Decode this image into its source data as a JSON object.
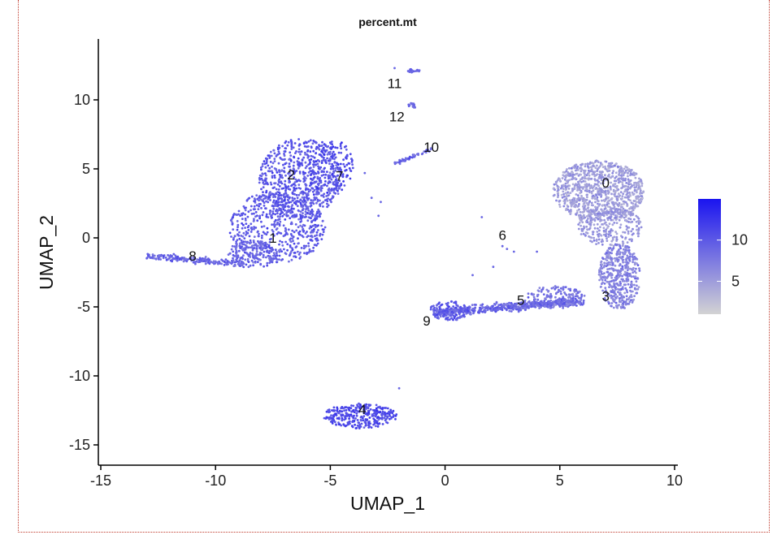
{
  "chart_data": {
    "type": "scatter",
    "title": "percent.mt",
    "xlabel": "UMAP_1",
    "ylabel": "UMAP_2",
    "xlim": [
      -15,
      10
    ],
    "ylim": [
      -15.5,
      14
    ],
    "xticks": [
      -15,
      -10,
      -5,
      0,
      5,
      10
    ],
    "yticks": [
      -15,
      -10,
      -5,
      0,
      5,
      10
    ],
    "xtick_labels": [
      "-15",
      "-10",
      "-5",
      "0",
      "5",
      "10"
    ],
    "ytick_labels": [
      "-15",
      "-10",
      "-5",
      "0",
      "5",
      "10"
    ],
    "grid": false,
    "color_scale": {
      "low_color": "#d3d3d3",
      "high_color": "#1a14f0",
      "range": [
        1,
        15
      ],
      "ticks": [
        5,
        10
      ],
      "tick_labels": [
        "5",
        "10"
      ],
      "legend_position": "right"
    },
    "clusters": [
      {
        "label": "0",
        "x": 7.0,
        "y": 4.0
      },
      {
        "label": "1",
        "x": -7.5,
        "y": 0.0
      },
      {
        "label": "2",
        "x": -6.7,
        "y": 4.6
      },
      {
        "label": "3",
        "x": 7.0,
        "y": -4.2
      },
      {
        "label": "4",
        "x": -3.6,
        "y": -12.4
      },
      {
        "label": "5",
        "x": 3.3,
        "y": -4.5
      },
      {
        "label": "6",
        "x": 2.5,
        "y": 0.2
      },
      {
        "label": "7",
        "x": -4.6,
        "y": 4.5
      },
      {
        "label": "8",
        "x": -11.0,
        "y": -1.3
      },
      {
        "label": "9",
        "x": -0.8,
        "y": -6.0
      },
      {
        "label": "10",
        "x": -0.6,
        "y": 6.6
      },
      {
        "label": "11",
        "x": -2.2,
        "y": 11.2
      },
      {
        "label": "12",
        "x": -2.1,
        "y": 8.8
      }
    ]
  }
}
